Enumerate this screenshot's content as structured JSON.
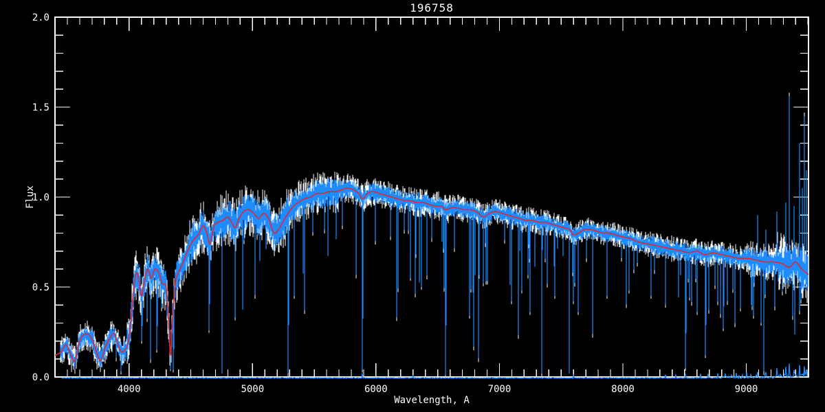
{
  "window": {
    "background": "#000000"
  },
  "chart_data": {
    "type": "line",
    "title": "196758",
    "xlabel": "Wavelength, A",
    "ylabel": "Flux",
    "xlim": [
      3400,
      9504
    ],
    "ylim": [
      0.0,
      2.0
    ],
    "grid": false,
    "legend": "none",
    "x_ticks": {
      "major": [
        4000,
        5000,
        6000,
        7000,
        8000,
        9000
      ],
      "major_labels": [
        "4000",
        "5000",
        "6000",
        "7000",
        "8000",
        "9000"
      ],
      "minor_step": 100
    },
    "y_ticks": {
      "major": [
        0.0,
        0.5,
        1.0,
        1.5,
        2.0
      ],
      "major_labels": [
        "0.0",
        "0.5",
        "1.0",
        "1.5",
        "2.0"
      ],
      "minor_step": 0.1
    },
    "colors": {
      "background": "#000000",
      "frame": "#ffffff",
      "text": "#ffffff",
      "observed": "#1e8cff",
      "observed_under": "#ffffff",
      "model": "#d92b35"
    },
    "series": [
      {
        "name": "observed spectrum (noisy)",
        "color": "#1e8cff",
        "style": "jagged"
      },
      {
        "name": "observed spectrum underlay",
        "color": "#ffffff",
        "style": "jagged"
      },
      {
        "name": "smooth model fit",
        "color": "#d92b35",
        "style": "smooth"
      },
      {
        "name": "error spectrum (near zero)",
        "color": "#1e8cff",
        "style": "baseline"
      }
    ],
    "model_points": [
      [
        3400,
        0.12
      ],
      [
        3450,
        0.14
      ],
      [
        3490,
        0.18
      ],
      [
        3530,
        0.12
      ],
      [
        3560,
        0.09
      ],
      [
        3600,
        0.2
      ],
      [
        3650,
        0.24
      ],
      [
        3700,
        0.21
      ],
      [
        3740,
        0.13
      ],
      [
        3770,
        0.09
      ],
      [
        3800,
        0.15
      ],
      [
        3840,
        0.21
      ],
      [
        3880,
        0.24
      ],
      [
        3920,
        0.16
      ],
      [
        3950,
        0.14
      ],
      [
        3990,
        0.18
      ],
      [
        4010,
        0.28
      ],
      [
        4040,
        0.5
      ],
      [
        4060,
        0.58
      ],
      [
        4080,
        0.54
      ],
      [
        4100,
        0.45
      ],
      [
        4120,
        0.52
      ],
      [
        4150,
        0.6
      ],
      [
        4180,
        0.55
      ],
      [
        4210,
        0.6
      ],
      [
        4240,
        0.58
      ],
      [
        4270,
        0.52
      ],
      [
        4300,
        0.5
      ],
      [
        4320,
        0.32
      ],
      [
        4336,
        0.12
      ],
      [
        4352,
        0.32
      ],
      [
        4375,
        0.52
      ],
      [
        4400,
        0.58
      ],
      [
        4440,
        0.64
      ],
      [
        4480,
        0.71
      ],
      [
        4520,
        0.76
      ],
      [
        4560,
        0.79
      ],
      [
        4600,
        0.84
      ],
      [
        4630,
        0.8
      ],
      [
        4655,
        0.74
      ],
      [
        4690,
        0.84
      ],
      [
        4720,
        0.86
      ],
      [
        4760,
        0.87
      ],
      [
        4800,
        0.89
      ],
      [
        4830,
        0.86
      ],
      [
        4861,
        0.83
      ],
      [
        4890,
        0.88
      ],
      [
        4930,
        0.92
      ],
      [
        4970,
        0.93
      ],
      [
        5010,
        0.91
      ],
      [
        5050,
        0.88
      ],
      [
        5090,
        0.91
      ],
      [
        5130,
        0.88
      ],
      [
        5175,
        0.8
      ],
      [
        5220,
        0.83
      ],
      [
        5270,
        0.89
      ],
      [
        5320,
        0.94
      ],
      [
        5370,
        0.97
      ],
      [
        5420,
        0.99
      ],
      [
        5470,
        1.0
      ],
      [
        5520,
        1.02
      ],
      [
        5570,
        1.02
      ],
      [
        5620,
        1.03
      ],
      [
        5670,
        1.03
      ],
      [
        5720,
        1.04
      ],
      [
        5770,
        1.05
      ],
      [
        5820,
        1.04
      ],
      [
        5860,
        1.02
      ],
      [
        5893,
        0.99
      ],
      [
        5930,
        1.02
      ],
      [
        5980,
        1.03
      ],
      [
        6030,
        1.02
      ],
      [
        6080,
        1.01
      ],
      [
        6130,
        1.0
      ],
      [
        6180,
        0.99
      ],
      [
        6230,
        0.98
      ],
      [
        6280,
        0.98
      ],
      [
        6330,
        0.97
      ],
      [
        6380,
        0.97
      ],
      [
        6430,
        0.96
      ],
      [
        6480,
        0.95
      ],
      [
        6530,
        0.95
      ],
      [
        6563,
        0.93
      ],
      [
        6610,
        0.94
      ],
      [
        6660,
        0.94
      ],
      [
        6710,
        0.93
      ],
      [
        6760,
        0.93
      ],
      [
        6810,
        0.92
      ],
      [
        6870,
        0.89
      ],
      [
        6920,
        0.91
      ],
      [
        6970,
        0.92
      ],
      [
        7020,
        0.91
      ],
      [
        7070,
        0.9
      ],
      [
        7120,
        0.89
      ],
      [
        7170,
        0.88
      ],
      [
        7220,
        0.87
      ],
      [
        7270,
        0.87
      ],
      [
        7320,
        0.86
      ],
      [
        7370,
        0.86
      ],
      [
        7420,
        0.85
      ],
      [
        7470,
        0.84
      ],
      [
        7520,
        0.83
      ],
      [
        7570,
        0.82
      ],
      [
        7600,
        0.79
      ],
      [
        7640,
        0.8
      ],
      [
        7690,
        0.82
      ],
      [
        7740,
        0.82
      ],
      [
        7790,
        0.81
      ],
      [
        7840,
        0.8
      ],
      [
        7890,
        0.8
      ],
      [
        7940,
        0.79
      ],
      [
        7990,
        0.78
      ],
      [
        8060,
        0.77
      ],
      [
        8130,
        0.75
      ],
      [
        8200,
        0.74
      ],
      [
        8270,
        0.73
      ],
      [
        8340,
        0.72
      ],
      [
        8410,
        0.71
      ],
      [
        8480,
        0.7
      ],
      [
        8542,
        0.69
      ],
      [
        8600,
        0.7
      ],
      [
        8662,
        0.68
      ],
      [
        8730,
        0.69
      ],
      [
        8800,
        0.68
      ],
      [
        8870,
        0.67
      ],
      [
        8940,
        0.66
      ],
      [
        9010,
        0.66
      ],
      [
        9080,
        0.65
      ],
      [
        9150,
        0.64
      ],
      [
        9220,
        0.64
      ],
      [
        9290,
        0.63
      ],
      [
        9350,
        0.61
      ],
      [
        9400,
        0.64
      ],
      [
        9450,
        0.6
      ],
      [
        9504,
        0.57
      ]
    ],
    "noise_profile": [
      [
        3400,
        3980,
        0.06,
        0.05
      ],
      [
        3980,
        4450,
        0.095,
        0.06
      ],
      [
        4450,
        5300,
        0.105,
        0.06
      ],
      [
        5300,
        5700,
        0.08,
        0.07
      ],
      [
        5700,
        6600,
        0.055,
        0.1
      ],
      [
        6600,
        7400,
        0.05,
        0.11
      ],
      [
        7400,
        8200,
        0.045,
        0.09
      ],
      [
        8200,
        9000,
        0.05,
        0.1
      ],
      [
        9000,
        9250,
        0.07,
        0.1
      ],
      [
        9250,
        9505,
        0.115,
        0.12
      ]
    ],
    "absorption_spikes": [
      [
        3933,
        0.03
      ],
      [
        4101,
        0.2
      ],
      [
        4227,
        0.15
      ],
      [
        4358,
        0.04
      ],
      [
        4650,
        0.26
      ],
      [
        4861,
        0.33
      ],
      [
        4920,
        0.4
      ],
      [
        5290,
        0.02
      ],
      [
        5340,
        0.45
      ],
      [
        5890,
        0.04
      ],
      [
        6280,
        0.55
      ],
      [
        6370,
        0.5
      ],
      [
        6563,
        0.01
      ],
      [
        6760,
        0.34
      ],
      [
        6870,
        0.52
      ],
      [
        7100,
        0.42
      ],
      [
        7180,
        0.48
      ],
      [
        7250,
        0.36
      ],
      [
        7450,
        0.45
      ],
      [
        7600,
        0.42
      ],
      [
        7640,
        0.36
      ],
      [
        7870,
        0.45
      ],
      [
        8050,
        0.48
      ],
      [
        8230,
        0.45
      ],
      [
        8344,
        0.4
      ],
      [
        8508,
        0.05
      ],
      [
        8542,
        0.44
      ],
      [
        8600,
        0.36
      ],
      [
        8670,
        0.12
      ],
      [
        8815,
        0.27
      ],
      [
        8950,
        0.38
      ],
      [
        9060,
        0.34
      ],
      [
        9120,
        0.3
      ]
    ],
    "sky_spikes": [
      [
        9090,
        0.9
      ],
      [
        9160,
        0.82
      ],
      [
        9250,
        0.92
      ],
      [
        9320,
        0.97
      ],
      [
        9348,
        1.56
      ],
      [
        9385,
        0.95
      ],
      [
        9432,
        1.3
      ],
      [
        9452,
        1.05
      ],
      [
        9470,
        1.45
      ],
      [
        9490,
        1.15
      ]
    ],
    "error_spikes": [
      [
        5890,
        0.025
      ],
      [
        6300,
        0.02
      ],
      [
        7600,
        0.022
      ],
      [
        8344,
        0.02
      ],
      [
        8430,
        0.025
      ],
      [
        8508,
        0.03
      ],
      [
        8630,
        0.025
      ],
      [
        8690,
        0.03
      ],
      [
        8770,
        0.025
      ],
      [
        8830,
        0.035
      ],
      [
        8920,
        0.03
      ],
      [
        9001,
        0.04
      ],
      [
        9090,
        0.045
      ],
      [
        9160,
        0.04
      ],
      [
        9250,
        0.05
      ],
      [
        9320,
        0.055
      ],
      [
        9348,
        0.095
      ],
      [
        9385,
        0.05
      ],
      [
        9432,
        0.07
      ],
      [
        9470,
        0.075
      ],
      [
        9490,
        0.06
      ]
    ]
  }
}
